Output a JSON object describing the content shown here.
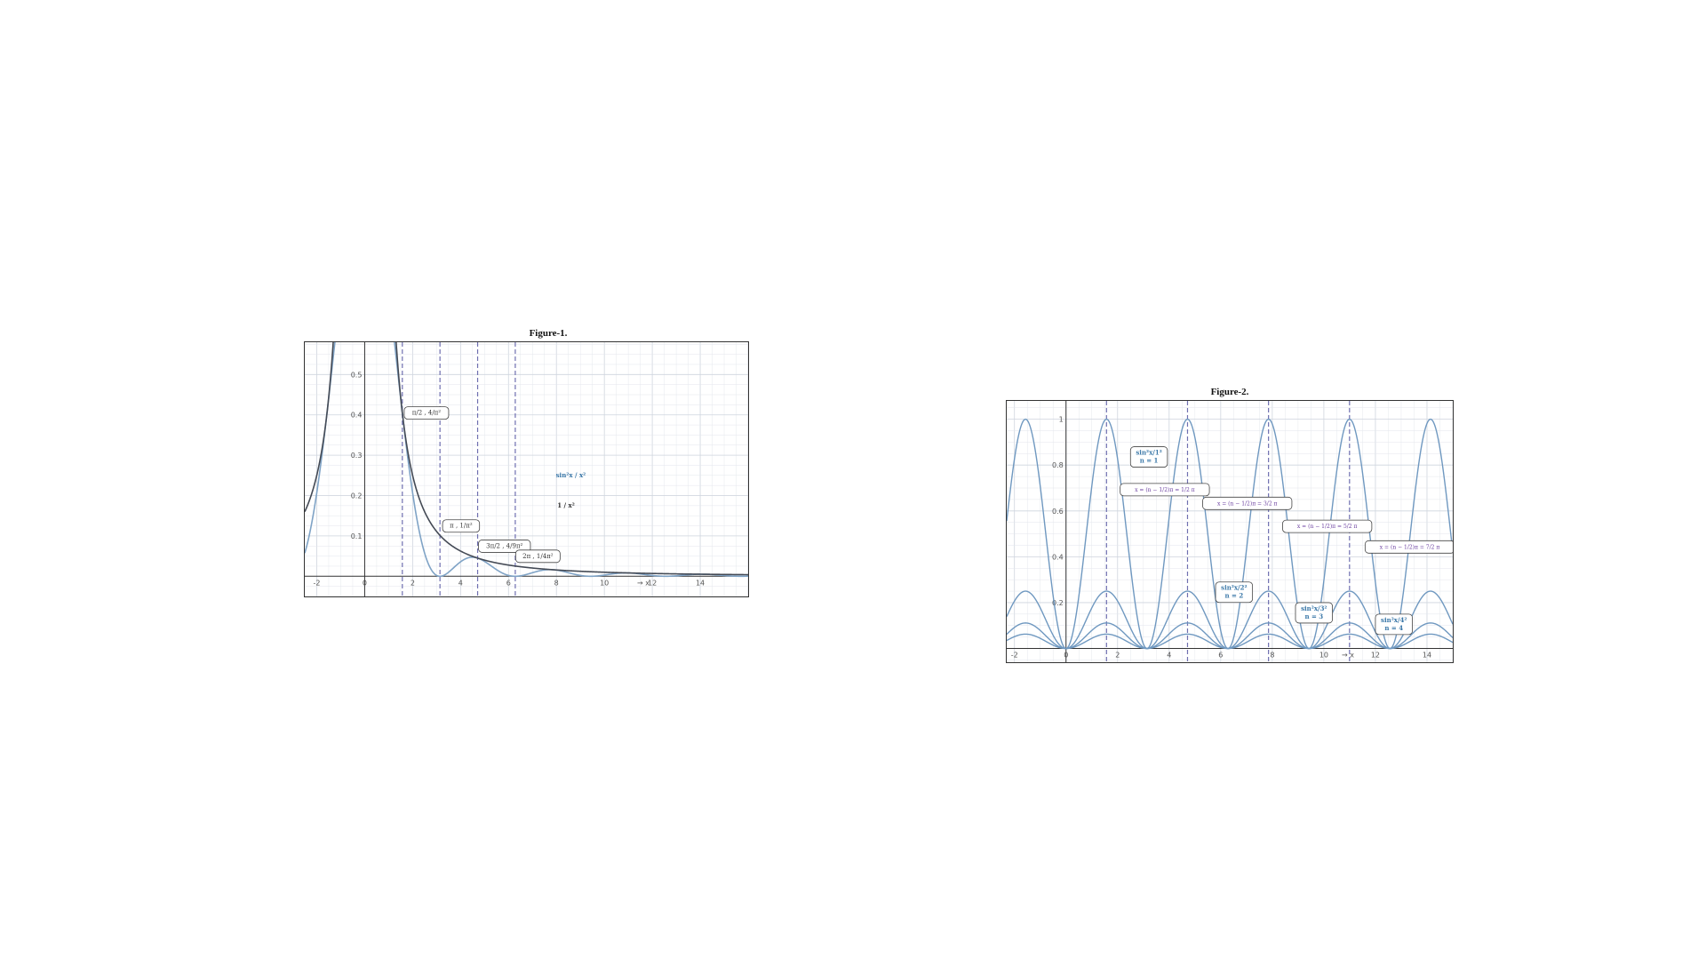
{
  "figures": {
    "fig1": {
      "title": "Figure-1."
    },
    "fig2": {
      "title": "Figure-2."
    }
  },
  "chart_data": [
    {
      "type": "line",
      "title": "Figure-1.",
      "xlabel": "→ x",
      "ylabel": "",
      "xlim": [
        -2.5,
        16
      ],
      "ylim": [
        -0.05,
        0.58
      ],
      "x_ticks": [
        -2,
        0,
        2,
        4,
        6,
        8,
        10,
        12,
        14
      ],
      "x_tick_labels": [
        "-2",
        "0",
        "2",
        "4",
        "6",
        "8",
        "10",
        "12",
        "14"
      ],
      "y_ticks": [
        0.1,
        0.2,
        0.3,
        0.4,
        0.5
      ],
      "y_tick_labels": [
        "0.1",
        "0.2",
        "0.3",
        "0.4",
        "0.5"
      ],
      "grid": true,
      "series": [
        {
          "name": "sin²x / x²",
          "function": "sin(x)^2/x^2",
          "color": "#7fa3c6"
        },
        {
          "name": "1 / x²",
          "function": "1/x^2",
          "color": "#444a55"
        }
      ],
      "dashed_verticals_x": [
        1.5708,
        3.1416,
        4.7124,
        6.2832
      ],
      "annotations": [
        {
          "text": "π/2 , 4/π²",
          "x": 1.5708,
          "y": 0.405
        },
        {
          "text": "π , 1/π²",
          "x": 3.1416,
          "y": 0.101
        },
        {
          "text": "3π/2 , 4/9π²",
          "x": 4.7124,
          "y": 0.045
        },
        {
          "text": "2π , 1/4π²",
          "x": 6.2832,
          "y": 0.025
        }
      ],
      "legend_labels": [
        "sin²x / x²",
        "1 / x²"
      ],
      "colors": {
        "curve_light": "#7fa3c6",
        "curve_dark": "#444a55",
        "dashed": "#6f6fb0",
        "grid": "#d6dbe3"
      }
    },
    {
      "type": "line",
      "title": "Figure-2.",
      "xlabel": "→ x",
      "ylabel": "",
      "xlim": [
        -2.3,
        15
      ],
      "ylim": [
        -0.06,
        1.08
      ],
      "x_ticks": [
        -2,
        0,
        2,
        4,
        6,
        8,
        10,
        12,
        14
      ],
      "x_tick_labels": [
        "-2",
        "0",
        "2",
        "4",
        "6",
        "8",
        "10",
        "12",
        "14"
      ],
      "y_ticks": [
        0.2,
        0.4,
        0.6,
        0.8,
        1
      ],
      "y_tick_labels": [
        "0.2",
        "0.4",
        "0.6",
        "0.8",
        "1"
      ],
      "grid": true,
      "series": [
        {
          "name": "sin²x/1² (n = 1)",
          "n": 1,
          "color": "#6f98c0"
        },
        {
          "name": "sin²x/2² (n = 2)",
          "n": 2,
          "color": "#6f98c0"
        },
        {
          "name": "sin²x/3² (n = 3)",
          "n": 3,
          "color": "#6f98c0"
        },
        {
          "name": "sin²x/4² (n = 4)",
          "n": 4,
          "color": "#6f98c0"
        }
      ],
      "dashed_verticals_x": [
        1.5708,
        4.7124,
        7.854,
        10.9956
      ],
      "annotations": [
        {
          "text": "sin²x / 1²  n = 1",
          "x": 2.4,
          "y": 0.83
        },
        {
          "text": "x = (n − 1/2)π = 1/2 π",
          "x": 2.2,
          "y": 0.67
        },
        {
          "text": "x = (n − 1/2)π = 3/2 π",
          "x": 5.8,
          "y": 0.62
        },
        {
          "text": "x = (n − 1/2)π = 5/2 π",
          "x": 9.3,
          "y": 0.52
        },
        {
          "text": "x = (n − 1/2)π = 7/2 π",
          "x": 12.5,
          "y": 0.42
        },
        {
          "text": "sin²x / 2²  n = 2",
          "x": 6.2,
          "y": 0.23
        },
        {
          "text": "sin²x / 3²  n = 3",
          "x": 9.4,
          "y": 0.12
        },
        {
          "text": "sin²x / 4²  n = 4",
          "x": 12.3,
          "y": 0.08
        }
      ],
      "colors": {
        "curve": "#6f98c0",
        "dashed": "#6f6fb0",
        "grid": "#d6dbe3"
      }
    }
  ]
}
